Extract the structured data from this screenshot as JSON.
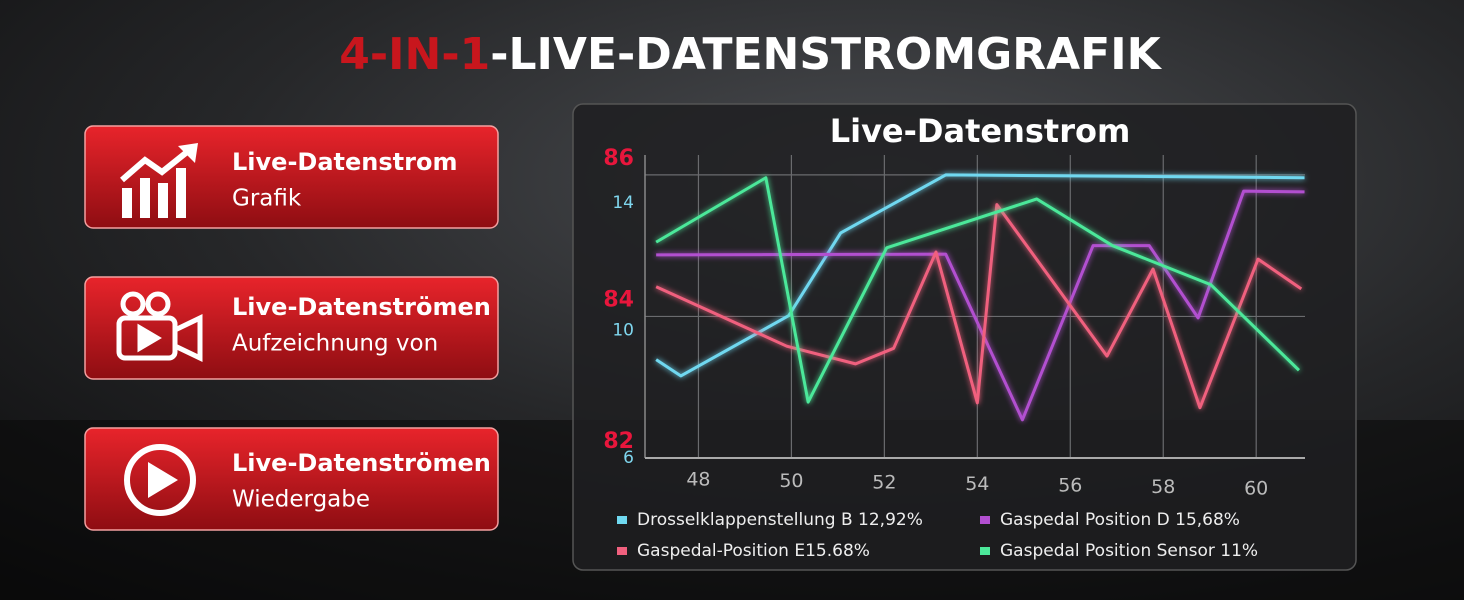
{
  "header": {
    "title_highlight": "4-IN-1",
    "title_rest": "-LIVE-DATENSTROMGRAFIK"
  },
  "features": [
    {
      "title": "Live-Datenstrom",
      "subtitle": "Grafik"
    },
    {
      "title": "Live-Datenströmen",
      "subtitle": "Aufzeichnung von"
    },
    {
      "title": "Live-Datenströmen",
      "subtitle": "Wiedergabe"
    }
  ],
  "chart_data": {
    "type": "line",
    "title": "Live-Datenstrom",
    "xlim": [
      46.85,
      61.05
    ],
    "xticks": [
      48,
      50,
      52,
      54,
      56,
      58,
      60
    ],
    "ylim": [
      82,
      86.14
    ],
    "yticks": [
      82,
      84,
      86
    ],
    "y2lim": [
      6,
      15.19
    ],
    "y2ticks": [
      6,
      10,
      14
    ],
    "grid": true,
    "series": [
      {
        "name": "Drosselklappenstellung B 12,92%",
        "color": "#6fd8f0",
        "x": [
          47.09,
          47.62,
          49.94,
          51.06,
          53.32,
          61.04
        ],
        "values": [
          83.39,
          83.16,
          84.01,
          85.18,
          86.0,
          85.96
        ]
      },
      {
        "name": "Gaspedal Position D 15,68%",
        "color": "#b24fd0",
        "x": [
          47.09,
          53.32,
          54.97,
          56.49,
          57.7,
          58.75,
          59.73,
          61.04
        ],
        "values": [
          84.87,
          84.88,
          82.54,
          85.0,
          85.0,
          83.98,
          85.77,
          85.76
        ]
      },
      {
        "name": "Gaspedal-Position E15.68%",
        "color": "#f0607e",
        "x": [
          47.09,
          49.9,
          51.38,
          52.2,
          53.11,
          54.0,
          54.42,
          56.79,
          57.78,
          58.79,
          60.04,
          60.97
        ],
        "values": [
          84.42,
          83.58,
          83.33,
          83.55,
          84.91,
          82.78,
          85.58,
          83.44,
          84.67,
          82.71,
          84.81,
          84.39
        ]
      },
      {
        "name": "Gaspedal Position Sensor 11%",
        "color": "#4ce89a",
        "x": [
          47.09,
          49.45,
          50.36,
          52.05,
          55.28,
          56.91,
          59.02,
          60.92
        ],
        "values": [
          85.05,
          85.96,
          82.79,
          84.97,
          85.66,
          85.0,
          84.45,
          83.24
        ]
      }
    ]
  }
}
